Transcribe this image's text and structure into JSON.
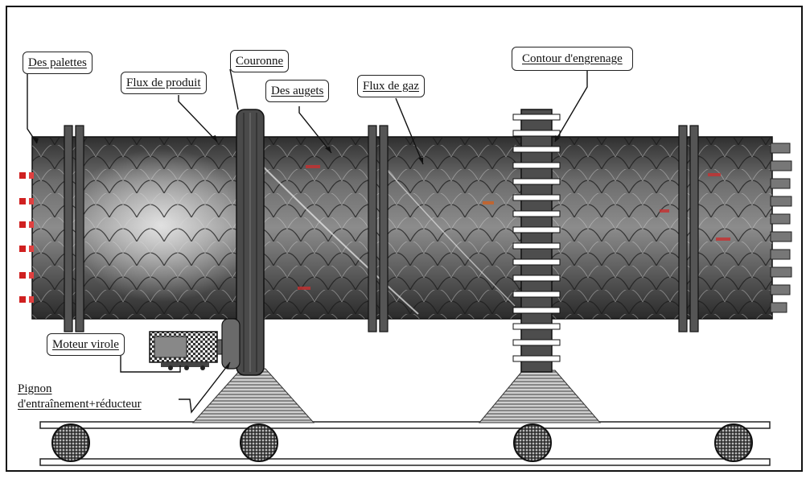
{
  "labels": {
    "palettes": "Des palettes",
    "flux_produit": "Flux de produit",
    "couronne": "Couronne",
    "augets": "Des augets",
    "flux_gaz": "Flux de gaz",
    "engrenage": "Contour d'engrenage",
    "moteur": "Moteur virole",
    "pignon_line1": "Pignon",
    "pignon_line2": "d'entraînement+réducteur"
  },
  "colors": {
    "shell_dark": "#3a3a3a",
    "shell_light": "#9a9a9a",
    "flame": "#d02020",
    "outline": "#111111"
  }
}
